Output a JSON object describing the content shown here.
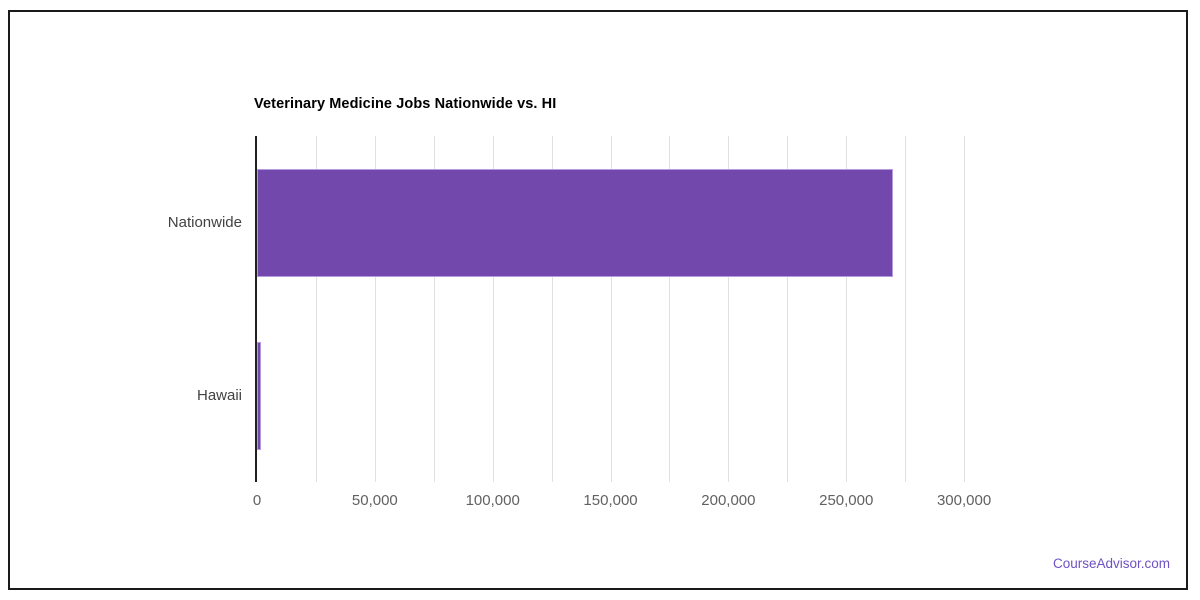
{
  "page": {
    "watermark": "CourseAdvisor.com",
    "watermark_color": "#6e51c3"
  },
  "chart_data": {
    "type": "bar",
    "orientation": "horizontal",
    "title": "Veterinary Medicine Jobs Nationwide vs. HI",
    "categories": [
      "Nationwide",
      "Hawaii"
    ],
    "values": [
      270000,
      1600
    ],
    "xlabel": "",
    "ylabel": "",
    "xlim": [
      0,
      325000
    ],
    "grid_interval": 25000,
    "tick_interval": 50000,
    "tick_labels": [
      "0",
      "50,000",
      "100,000",
      "150,000",
      "200,000",
      "250,000",
      "300,000"
    ],
    "grid": true,
    "legend": false,
    "bar_color": "#7248ad",
    "bar_border_color": "#b49be0",
    "grid_color": "#e0e0e0",
    "axis_color": "#212121",
    "tick_label_color": "#616161",
    "category_label_color": "#424242",
    "title_color": "#000000"
  }
}
